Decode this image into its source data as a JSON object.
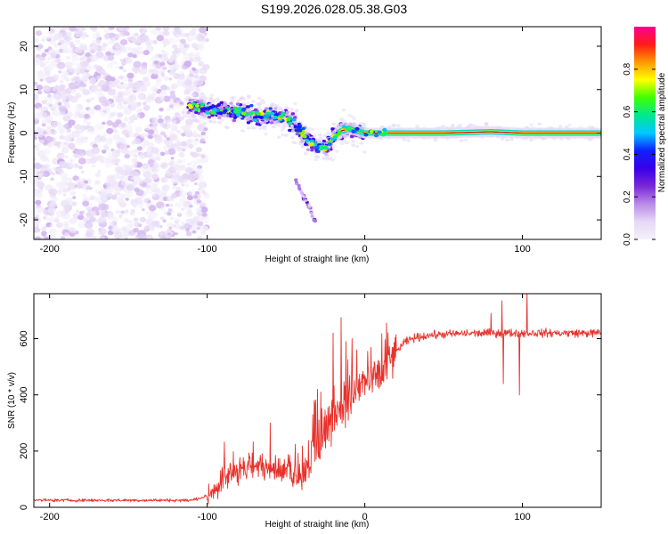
{
  "title": "S199.2026.028.05.38.G03",
  "colors": {
    "snr_line": "#e8322c",
    "frame": "#000000",
    "background": "#ffffff"
  },
  "chart_data": [
    {
      "type": "heatmap",
      "name": "spectrogram",
      "xlabel": "Height of straight line (km)",
      "ylabel": "Frequency (Hz)",
      "xlim": [
        -210,
        150
      ],
      "ylim": [
        -24.5,
        24.5
      ],
      "xticks": [
        -200,
        -100,
        0,
        100
      ],
      "yticks": [
        -20,
        -10,
        0,
        10,
        20
      ],
      "colorbar": {
        "label": "Normalized spectral amplitude",
        "range": [
          0,
          1
        ],
        "ticks": [
          "0.0",
          "0.2",
          "0.4",
          "0.6",
          "0.8"
        ],
        "tick_values": [
          0.0,
          0.2,
          0.4,
          0.6,
          0.8
        ],
        "colormap": [
          "#f4f0fb",
          "#e6d8f6",
          "#b98ae8",
          "#7a28d8",
          "#3a00e8",
          "#1020ff",
          "#00c8ff",
          "#00e890",
          "#40ff00",
          "#ffff00",
          "#ff9a00",
          "#ff1a1a",
          "#ff0090"
        ]
      },
      "carrier_track": [
        [
          -112,
          6.5
        ],
        [
          -100,
          5.5
        ],
        [
          -90,
          5
        ],
        [
          -80,
          5
        ],
        [
          -70,
          4
        ],
        [
          -60,
          4
        ],
        [
          -50,
          3.5
        ],
        [
          -45,
          2.5
        ],
        [
          -40,
          0
        ],
        [
          -35,
          -2
        ],
        [
          -30,
          -3
        ],
        [
          -25,
          -3.5
        ],
        [
          -20,
          -1
        ],
        [
          -15,
          0.5
        ],
        [
          -10,
          1
        ],
        [
          -5,
          0.5
        ],
        [
          0,
          0
        ],
        [
          10,
          0
        ],
        [
          50,
          0
        ],
        [
          80,
          0.3
        ],
        [
          100,
          0
        ],
        [
          150,
          0
        ]
      ],
      "branch_track": [
        [
          -45,
          -10
        ],
        [
          -40,
          -14
        ],
        [
          -35,
          -17
        ],
        [
          -32,
          -20
        ]
      ]
    },
    {
      "type": "line",
      "name": "snr",
      "xlabel": "Height of straight line (km)",
      "ylabel": "SNR (10 * v/v)",
      "xlim": [
        -210,
        150
      ],
      "ylim": [
        0,
        760
      ],
      "xticks": [
        -200,
        -100,
        0,
        100
      ],
      "yticks": [
        0,
        200,
        400,
        600
      ],
      "envelope": [
        [
          -210,
          25
        ],
        [
          -110,
          25
        ],
        [
          -100,
          40
        ],
        [
          -95,
          70
        ],
        [
          -88,
          110
        ],
        [
          -80,
          130
        ],
        [
          -70,
          140
        ],
        [
          -60,
          150
        ],
        [
          -50,
          120
        ],
        [
          -40,
          120
        ],
        [
          -35,
          160
        ],
        [
          -30,
          210
        ],
        [
          -25,
          280
        ],
        [
          -20,
          330
        ],
        [
          -15,
          360
        ],
        [
          -10,
          380
        ],
        [
          -5,
          420
        ],
        [
          0,
          440
        ],
        [
          5,
          455
        ],
        [
          10,
          470
        ],
        [
          15,
          510
        ],
        [
          20,
          555
        ],
        [
          25,
          585
        ],
        [
          30,
          600
        ],
        [
          40,
          612
        ],
        [
          60,
          618
        ],
        [
          80,
          620
        ],
        [
          100,
          620
        ],
        [
          120,
          620
        ],
        [
          150,
          620
        ]
      ],
      "spikes": [
        [
          -60,
          300
        ],
        [
          -32,
          380
        ],
        [
          -30,
          420
        ],
        [
          -28,
          410
        ],
        [
          -20,
          620
        ],
        [
          -15,
          675
        ],
        [
          -12,
          590
        ],
        [
          -8,
          600
        ],
        [
          -5,
          560
        ],
        [
          80,
          690
        ],
        [
          87,
          735
        ],
        [
          88,
          440
        ],
        [
          98,
          400
        ],
        [
          103,
          770
        ]
      ]
    }
  ]
}
